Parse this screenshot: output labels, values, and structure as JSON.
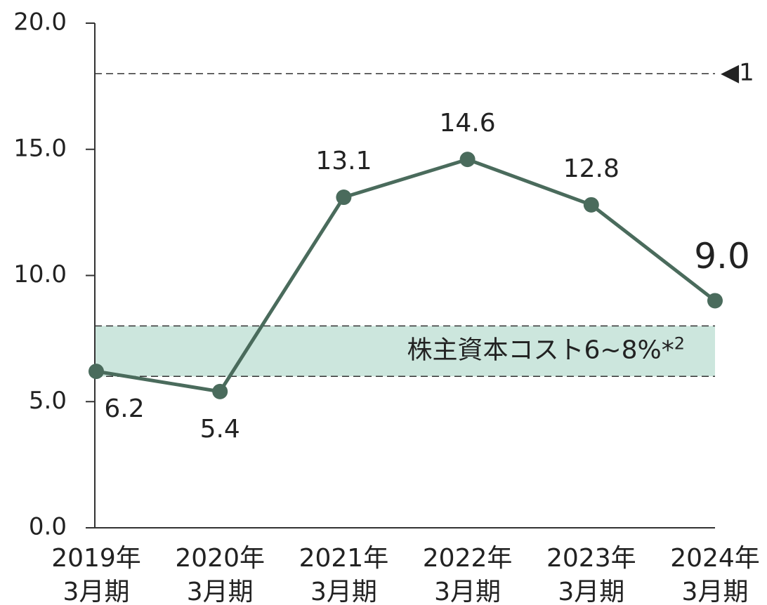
{
  "chart_data": {
    "type": "line",
    "categories": [
      [
        "2019年",
        "3月期"
      ],
      [
        "2020年",
        "3月期"
      ],
      [
        "2021年",
        "3月期"
      ],
      [
        "2022年",
        "3月期"
      ],
      [
        "2023年",
        "3月期"
      ],
      [
        "2024年",
        "3月期"
      ]
    ],
    "series": [
      {
        "color": "#4a6b5c",
        "values": [
          6.2,
          5.4,
          13.1,
          14.6,
          12.8,
          9.0
        ],
        "value_labels": [
          "6.2",
          "5.4",
          "13.1",
          "14.6",
          "12.8",
          "9.0"
        ]
      }
    ],
    "ylim": [
      0,
      20
    ],
    "yticks": [
      {
        "value": 0,
        "label": "0.0"
      },
      {
        "value": 5,
        "label": "5.0"
      },
      {
        "value": 10,
        "label": "10.0"
      },
      {
        "value": 15,
        "label": "15.0"
      },
      {
        "value": 20,
        "label": "20.0"
      }
    ],
    "reference_line": {
      "value": 18,
      "label": "◀1"
    },
    "band": {
      "from": 6,
      "to": 8,
      "color": "#cce6dd",
      "label": "株主資本コスト6~8%*",
      "label_sup": "2"
    }
  }
}
